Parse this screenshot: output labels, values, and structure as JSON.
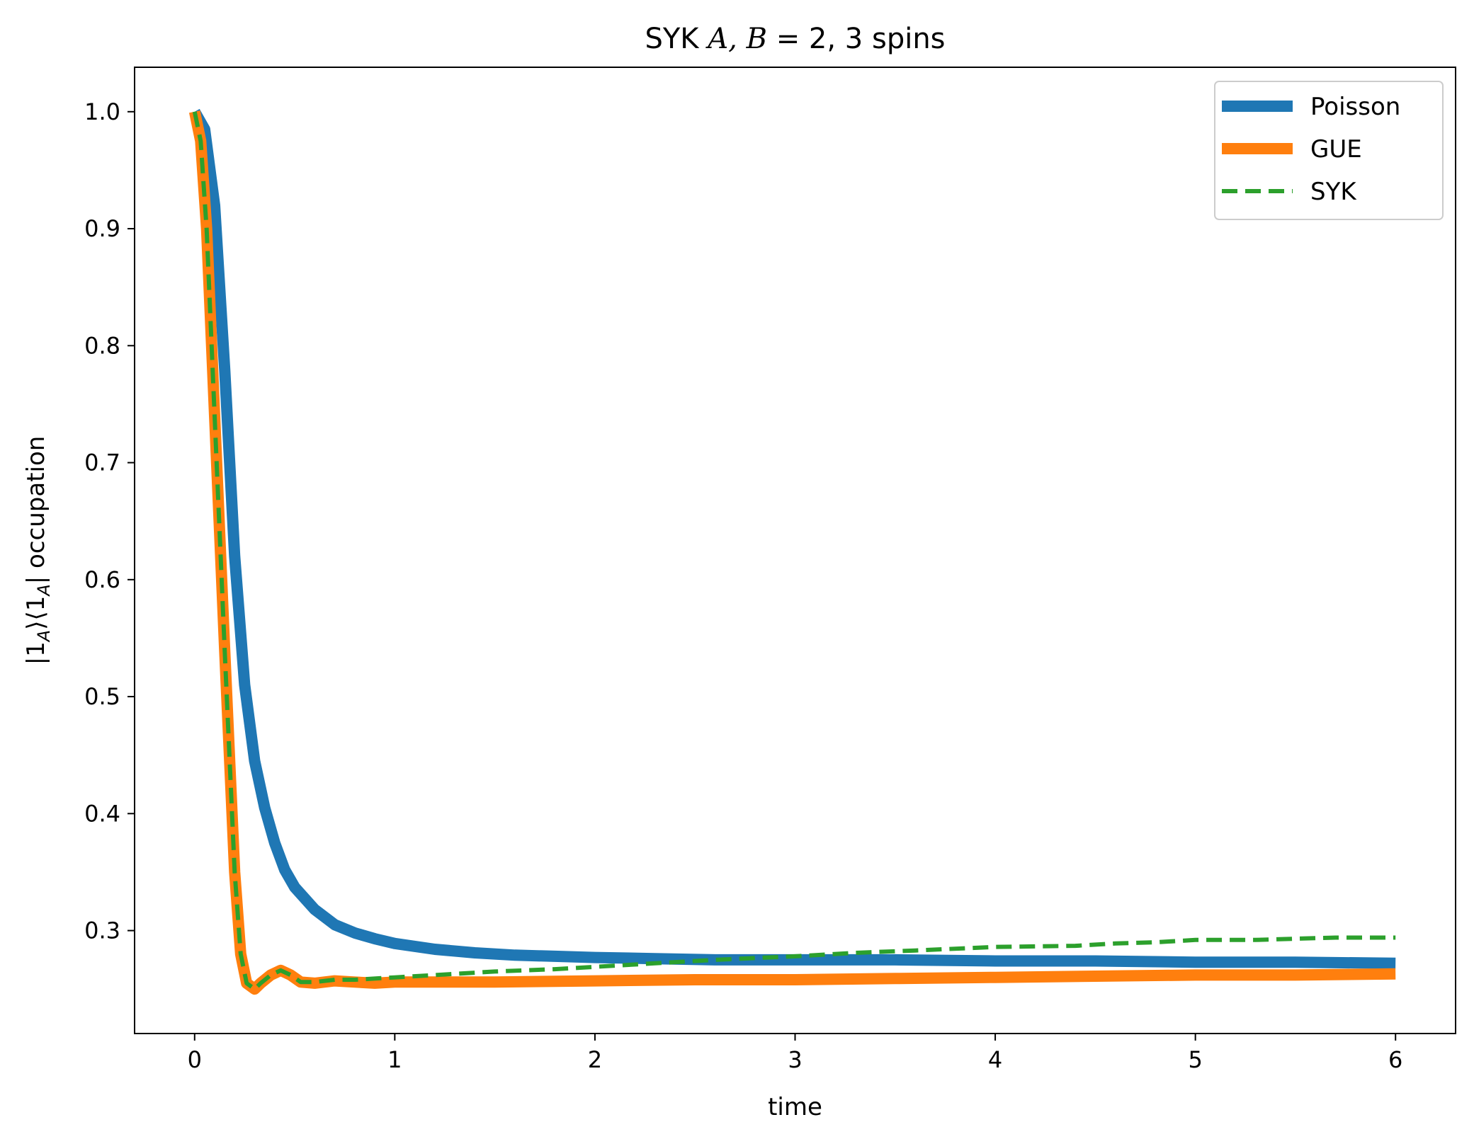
{
  "chart_data": {
    "type": "line",
    "title": "SYK A, B = 2, 3 spins",
    "xlabel": "time",
    "ylabel": "|1A⟩⟨1A| occupation",
    "xlim": [
      -0.3,
      6.3
    ],
    "ylim": [
      0.212,
      1.038
    ],
    "xticks": [
      0,
      1,
      2,
      3,
      4,
      5,
      6
    ],
    "yticks": [
      0.3,
      0.4,
      0.5,
      0.6,
      0.7,
      0.8,
      0.9,
      1.0
    ],
    "grid": false,
    "legend_position": "top-right",
    "series": [
      {
        "name": "Poisson",
        "color": "#1f77b4",
        "style": "solid-thick",
        "x": [
          0,
          0.05,
          0.1,
          0.15,
          0.2,
          0.25,
          0.3,
          0.35,
          0.4,
          0.45,
          0.5,
          0.6,
          0.7,
          0.8,
          0.9,
          1.0,
          1.2,
          1.4,
          1.6,
          1.8,
          2.0,
          2.3,
          2.6,
          3.0,
          3.5,
          4.0,
          4.5,
          5.0,
          5.5,
          6.0
        ],
        "y": [
          1.0,
          0.985,
          0.92,
          0.78,
          0.62,
          0.51,
          0.445,
          0.405,
          0.375,
          0.352,
          0.337,
          0.318,
          0.305,
          0.298,
          0.293,
          0.289,
          0.284,
          0.281,
          0.279,
          0.278,
          0.277,
          0.276,
          0.275,
          0.275,
          0.275,
          0.274,
          0.274,
          0.273,
          0.273,
          0.272
        ]
      },
      {
        "name": "GUE",
        "color": "#ff7f0e",
        "style": "solid-thick",
        "x": [
          0,
          0.03,
          0.06,
          0.1,
          0.15,
          0.2,
          0.23,
          0.26,
          0.3,
          0.33,
          0.38,
          0.43,
          0.48,
          0.53,
          0.6,
          0.7,
          0.8,
          0.9,
          1.0,
          1.5,
          2.0,
          2.5,
          3.0,
          3.5,
          4.0,
          4.5,
          5.0,
          5.5,
          6.0
        ],
        "y": [
          1.0,
          0.975,
          0.9,
          0.74,
          0.54,
          0.35,
          0.28,
          0.255,
          0.25,
          0.255,
          0.262,
          0.266,
          0.262,
          0.256,
          0.255,
          0.257,
          0.256,
          0.255,
          0.256,
          0.256,
          0.257,
          0.258,
          0.258,
          0.259,
          0.26,
          0.261,
          0.262,
          0.262,
          0.263
        ]
      },
      {
        "name": "SYK",
        "color": "#2ca02c",
        "style": "dashed",
        "x": [
          0,
          0.03,
          0.06,
          0.1,
          0.15,
          0.2,
          0.23,
          0.26,
          0.3,
          0.33,
          0.38,
          0.43,
          0.48,
          0.53,
          0.6,
          0.7,
          0.8,
          1.0,
          1.2,
          1.5,
          1.8,
          2.0,
          2.3,
          2.6,
          3.0,
          3.3,
          3.6,
          4.0,
          4.4,
          4.6,
          4.8,
          5.0,
          5.3,
          5.5,
          5.7,
          6.0
        ],
        "y": [
          1.0,
          0.975,
          0.9,
          0.74,
          0.54,
          0.35,
          0.28,
          0.255,
          0.25,
          0.255,
          0.262,
          0.266,
          0.262,
          0.256,
          0.256,
          0.258,
          0.258,
          0.26,
          0.262,
          0.265,
          0.267,
          0.269,
          0.272,
          0.275,
          0.278,
          0.281,
          0.283,
          0.286,
          0.287,
          0.289,
          0.29,
          0.292,
          0.292,
          0.293,
          0.294,
          0.294
        ]
      }
    ]
  }
}
